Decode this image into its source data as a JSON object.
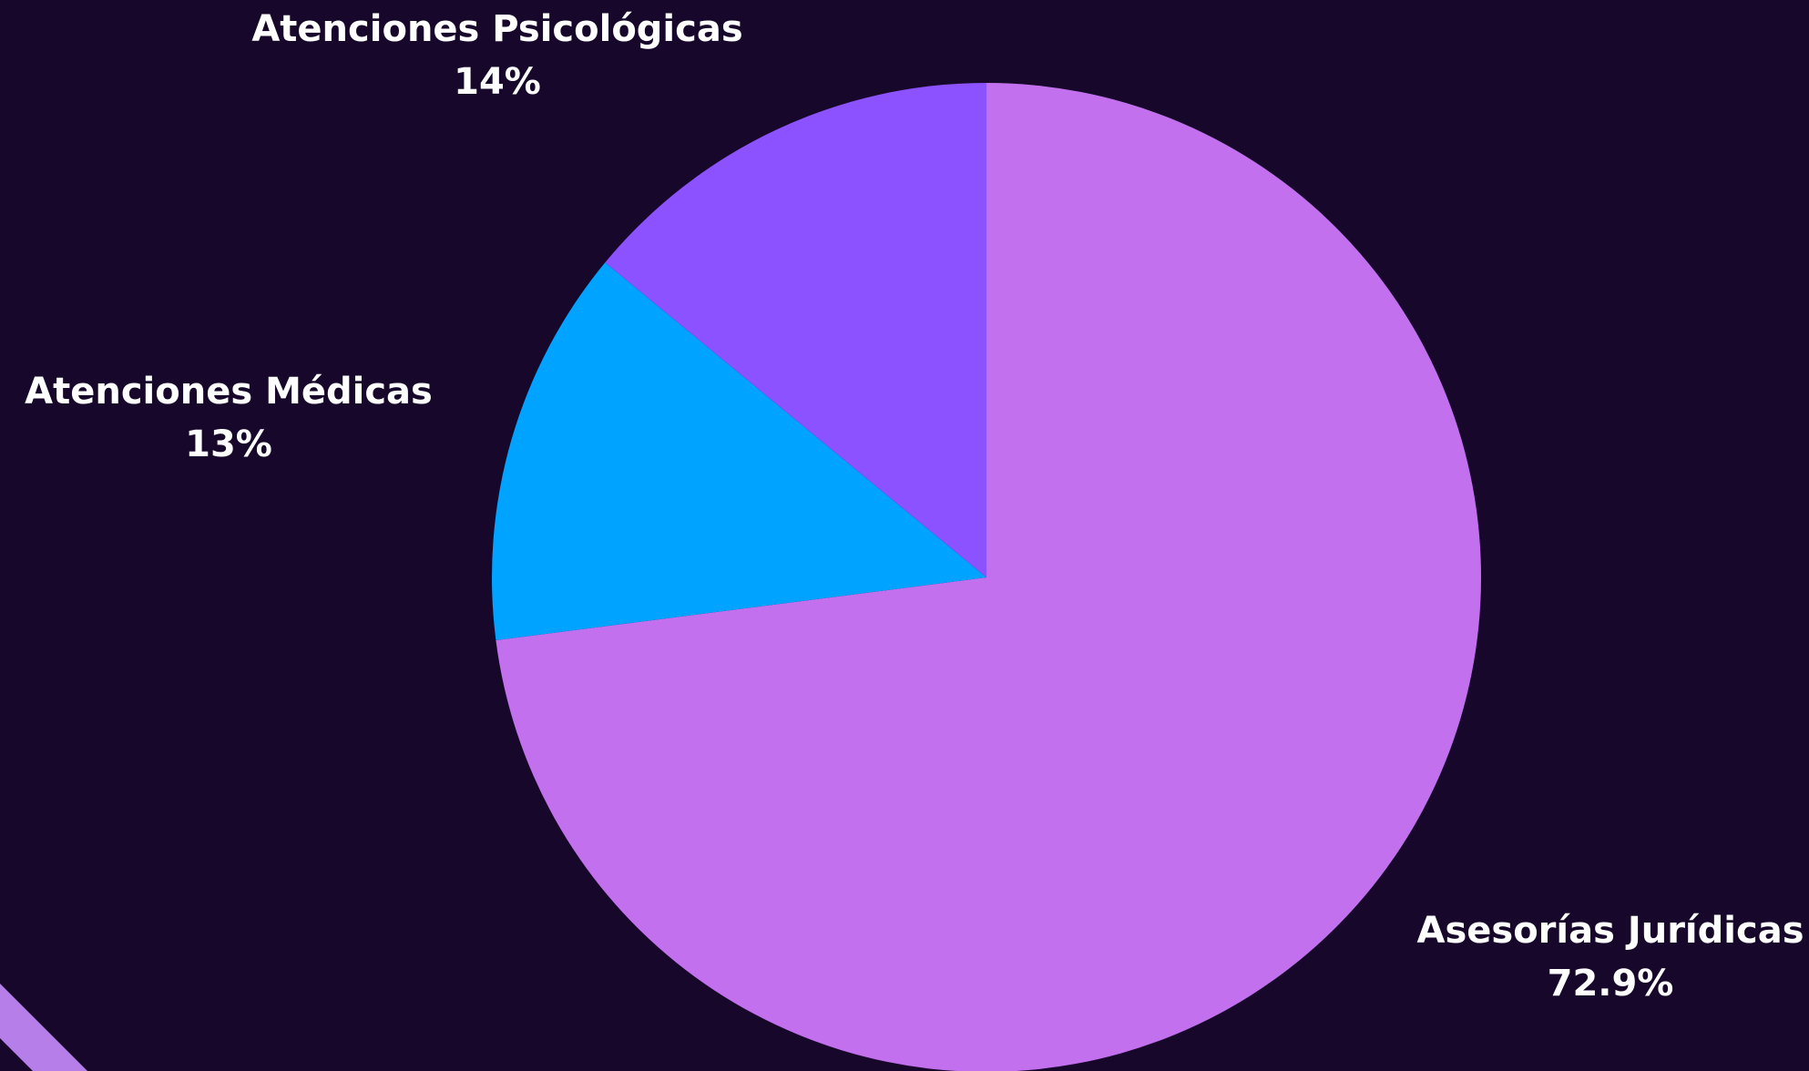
{
  "chart_data": {
    "type": "pie",
    "title": "",
    "slices": [
      {
        "label": "Asesorías Jurídicas",
        "value": 72.9,
        "value_label": "72.9%",
        "color": "#c270ee"
      },
      {
        "label": "Atenciones Médicas",
        "value": 13,
        "value_label": "13%",
        "color": "#00a3ff"
      },
      {
        "label": "Atenciones Psicológicas",
        "value": 14,
        "value_label": "14%",
        "color": "#8c52ff"
      }
    ],
    "start_angle": "12 o'clock",
    "direction": "clockwise",
    "legend": "none"
  },
  "colors": {
    "background": "#17082b",
    "label_text": "#ffffff",
    "corner_stripe": "#b57ee8"
  }
}
